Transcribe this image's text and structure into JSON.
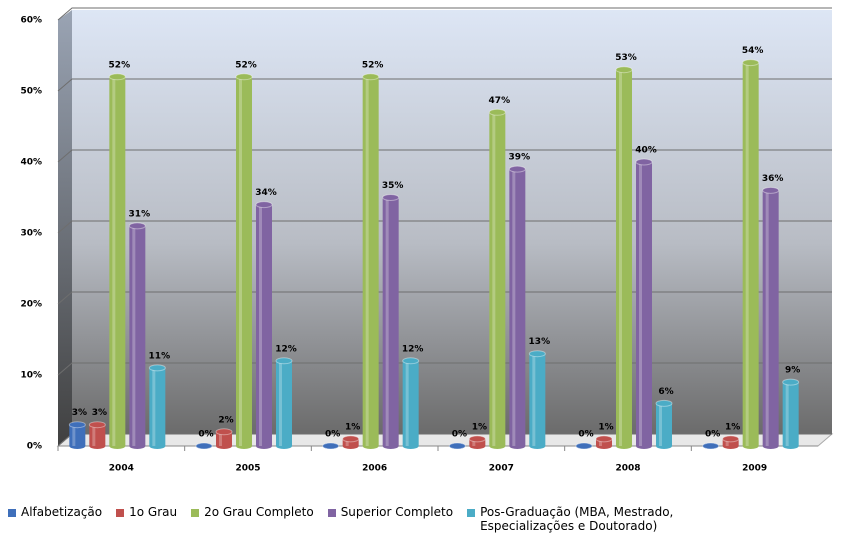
{
  "chart_data": {
    "type": "bar",
    "categories": [
      "2004",
      "2005",
      "2006",
      "2007",
      "2008",
      "2009"
    ],
    "series": [
      {
        "name": "Alfabetização",
        "color": "#3f6fba",
        "values": [
          3,
          0,
          0,
          0,
          0,
          0
        ],
        "value_labels": [
          "3%",
          "0%",
          "0%",
          "0%",
          "0%",
          "0%"
        ]
      },
      {
        "name": "1o Grau",
        "color": "#c0504d",
        "values": [
          3,
          2,
          1,
          1,
          1,
          1
        ],
        "value_labels": [
          "3%",
          "2%",
          "1%",
          "1%",
          "1%",
          "1%"
        ]
      },
      {
        "name": "2o Grau Completo",
        "color": "#9bbb59",
        "values": [
          52,
          52,
          52,
          47,
          53,
          54
        ],
        "value_labels": [
          "52%",
          "52%",
          "52%",
          "47%",
          "53%",
          "54%"
        ]
      },
      {
        "name": "Superior Completo",
        "color": "#8064a2",
        "values": [
          31,
          34,
          35,
          39,
          40,
          36
        ],
        "value_labels": [
          "31%",
          "34%",
          "35%",
          "39%",
          "40%",
          "36%"
        ]
      },
      {
        "name": "Pos-Graduação (MBA, Mestrado, Especializações e Doutorado)",
        "color": "#4bacc6",
        "values": [
          11,
          12,
          12,
          13,
          6,
          9
        ],
        "value_labels": [
          "11%",
          "12%",
          "12%",
          "13%",
          "6%",
          "9%"
        ]
      }
    ],
    "ylim": [
      0,
      60
    ],
    "yticks": [
      {
        "value": 0,
        "label": "0%"
      },
      {
        "value": 10,
        "label": "10%"
      },
      {
        "value": 20,
        "label": "20%"
      },
      {
        "value": 30,
        "label": "30%"
      },
      {
        "value": 40,
        "label": "40%"
      },
      {
        "value": 50,
        "label": "50%"
      },
      {
        "value": 60,
        "label": "60%"
      }
    ],
    "grid": true,
    "legend": "bottom"
  }
}
